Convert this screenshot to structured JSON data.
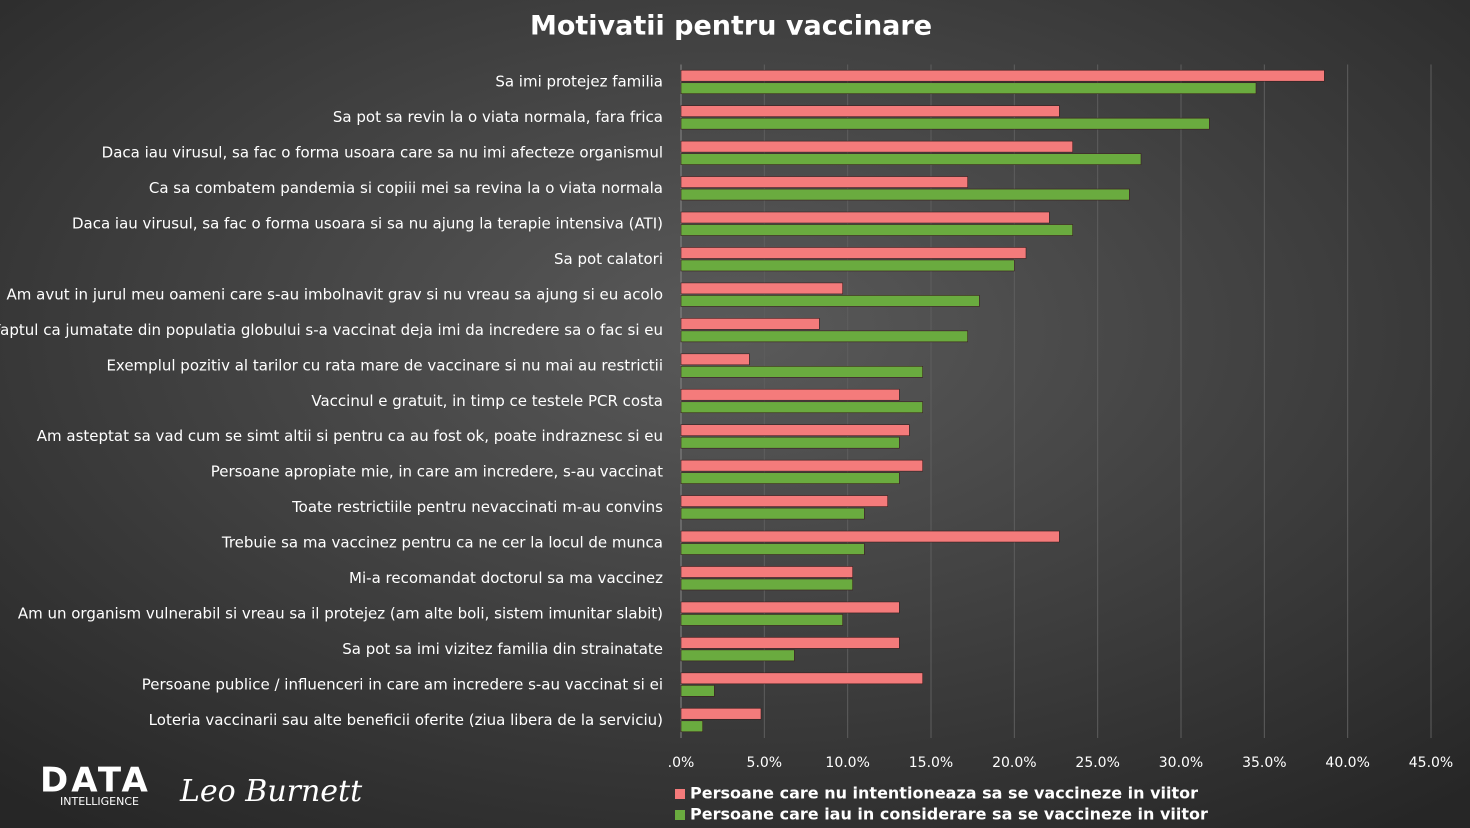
{
  "chart_data": {
    "type": "hbar",
    "title": "Motivatii pentru vaccinare",
    "categories": [
      "Sa imi protejez familia",
      "Sa pot sa revin la o viata normala, fara frica",
      "Daca iau virusul, sa fac o forma usoara care sa nu imi afecteze organismul",
      "Ca sa combatem pandemia si copiii mei sa revina la o viata normala",
      "Daca iau virusul, sa fac o forma usoara si sa nu ajung la terapie intensiva (ATI)",
      "Sa pot calatori",
      "Am avut in jurul meu oameni care s-au imbolnavit grav si nu vreau sa ajung si eu acolo",
      "Faptul ca jumatate din populatia globului s-a vaccinat deja imi da incredere sa o fac si eu",
      "Exemplul pozitiv al tarilor cu rata mare de vaccinare si nu mai au restrictii",
      "Vaccinul e gratuit, in timp ce testele PCR costa",
      "Am asteptat sa vad cum se simt altii si pentru ca au fost ok, poate indraznesc si eu",
      "Persoane apropiate mie, in care am incredere, s-au vaccinat",
      "Toate restrictiile pentru nevaccinati m-au convins",
      "Trebuie sa ma vaccinez pentru ca ne cer la locul de munca",
      "Mi-a recomandat doctorul sa ma vaccinez",
      "Am un organism vulnerabil si vreau sa il protejez (am alte boli, sistem imunitar slabit)",
      "Sa pot sa imi vizitez familia din strainatate",
      "Persoane publice / influenceri in care am incredere s-au vaccinat si ei",
      "Loteria vaccinarii sau alte beneficii oferite (ziua libera de la serviciu)"
    ],
    "series": [
      {
        "name": "Persoane care nu intentioneaza sa se vaccineze in viitor",
        "color": "#f47b7b",
        "values": [
          38.6,
          22.7,
          23.5,
          17.2,
          22.1,
          20.7,
          9.7,
          8.3,
          4.1,
          13.1,
          13.7,
          14.5,
          12.4,
          22.7,
          10.3,
          13.1,
          13.1,
          14.5,
          4.8
        ]
      },
      {
        "name": "Persoane care iau in considerare sa se vaccineze in viitor",
        "color": "#6aab3f",
        "values": [
          34.5,
          31.7,
          27.6,
          26.9,
          23.5,
          20.0,
          17.9,
          17.2,
          14.5,
          14.5,
          13.1,
          13.1,
          11.0,
          11.0,
          10.3,
          9.7,
          6.8,
          2.0,
          1.3
        ]
      }
    ],
    "xlim": [
      0,
      45
    ],
    "xticks": [
      {
        "value": 0,
        "label": ".0%"
      },
      {
        "value": 5,
        "label": "5.0%"
      },
      {
        "value": 10,
        "label": "10.0%"
      },
      {
        "value": 15,
        "label": "15.0%"
      },
      {
        "value": 20,
        "label": "20.0%"
      },
      {
        "value": 25,
        "label": "25.0%"
      },
      {
        "value": 30,
        "label": "30.0%"
      },
      {
        "value": 35,
        "label": "35.0%"
      },
      {
        "value": 40,
        "label": "40.0%"
      },
      {
        "value": 45,
        "label": "45.0%"
      }
    ],
    "grid": true,
    "legend": "bottom"
  },
  "branding": {
    "logo": "DATA",
    "logo_sub": "INTELLIGENCE",
    "signature": "Leo Burnett"
  }
}
